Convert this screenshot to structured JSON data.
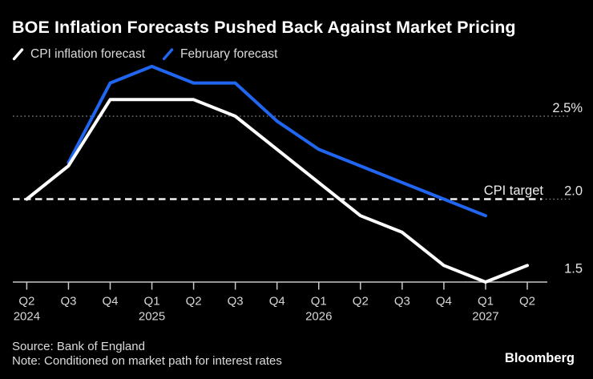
{
  "header": {
    "title": "BOE Inflation Forecasts Pushed Back Against Market Pricing"
  },
  "legend": {
    "items": [
      {
        "label": "CPI inflation forecast",
        "color": "#ffffff"
      },
      {
        "label": "February forecast",
        "color": "#2166f0"
      }
    ]
  },
  "chart_data": {
    "type": "line",
    "title": "BOE Inflation Forecasts Pushed Back Against Market Pricing",
    "categories": [
      "Q2 2024",
      "Q3 2024",
      "Q4 2024",
      "Q1 2025",
      "Q2 2025",
      "Q3 2025",
      "Q4 2025",
      "Q1 2026",
      "Q2 2026",
      "Q3 2026",
      "Q4 2026",
      "Q1 2027",
      "Q2 2027"
    ],
    "quarter_labels": [
      "Q2",
      "Q3",
      "Q4",
      "Q1",
      "Q2",
      "Q3",
      "Q4",
      "Q1",
      "Q2",
      "Q3",
      "Q4",
      "Q1",
      "Q2"
    ],
    "year_labels": [
      {
        "text": "2024",
        "tick": 0
      },
      {
        "text": "2025",
        "tick": 3
      },
      {
        "text": "2026",
        "tick": 7
      },
      {
        "text": "2027",
        "tick": 11
      }
    ],
    "series": [
      {
        "name": "February forecast",
        "color": "#2166f0",
        "values": [
          null,
          2.22,
          2.7,
          2.8,
          2.7,
          2.7,
          2.47,
          2.3,
          2.2,
          2.1,
          2.0,
          1.9,
          null
        ]
      },
      {
        "name": "CPI inflation forecast",
        "color": "#ffffff",
        "values": [
          2.0,
          2.2,
          2.6,
          2.6,
          2.6,
          2.5,
          2.3,
          2.1,
          1.9,
          1.8,
          1.6,
          1.5,
          1.6
        ]
      }
    ],
    "ylim": [
      1.5,
      2.85
    ],
    "ylabel": "",
    "xlabel": "",
    "yticks": [
      {
        "value": 2.5,
        "label": "2.5%"
      },
      {
        "value": 2.0,
        "label": "2.0"
      },
      {
        "value": 1.5,
        "label": "1.5"
      }
    ],
    "reference_lines": [
      {
        "value": 2.5,
        "style": "dotted",
        "label": ""
      },
      {
        "value": 2.0,
        "style": "dashed",
        "label": "CPI target"
      }
    ],
    "grid": "horizontal-reference-lines-only",
    "legend_position": "top-left"
  },
  "footer": {
    "source": "Source: Bank of England",
    "note": "Note: Conditioned on market path for interest rates",
    "brand": "Bloomberg"
  }
}
